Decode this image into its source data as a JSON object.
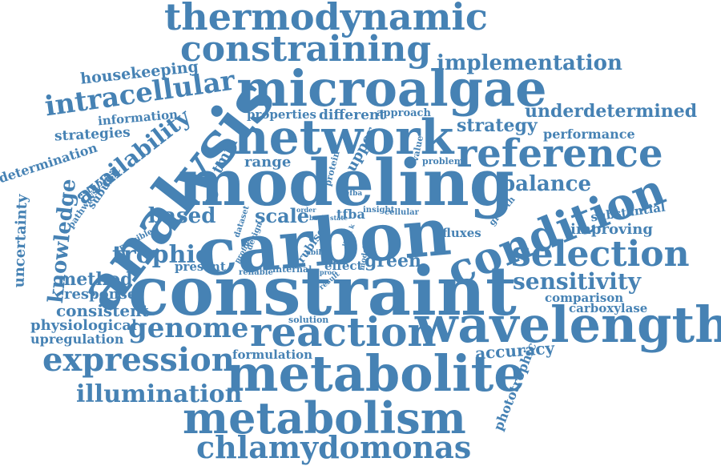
{
  "accent_color": "#4682b4",
  "background_color": "#ffffff",
  "words": {
    "thermodynamic": "thermodynamic",
    "constraining": "constraining",
    "implementation": "implementation",
    "housekeeping": "housekeeping",
    "microalgae": "microalgae",
    "intracellular": "intracellular",
    "underdetermined": "underdetermined",
    "information": "information",
    "properties": "properties",
    "different": "different",
    "approach": "approach",
    "strategies": "strategies",
    "network": "network",
    "strategy": "strategy",
    "performance": "performance",
    "analysis": "analysis",
    "reference": "reference",
    "determination": "determination",
    "availability": "availability",
    "tmfa": "tmfa",
    "upper": "upper",
    "value": "value",
    "range": "range",
    "protein": "protein",
    "problem": "problem",
    "establish": "establish",
    "modeling": "modeling",
    "subunit": "subunit",
    "balance": "balance",
    "cefba": "cefba",
    "pathways": "pathways",
    "uncertainty": "uncertainty",
    "knowledge": "knowledge",
    "condition": "condition",
    "growth": "growth",
    "substantial": "substantial",
    "based": "based",
    "scale": "scale",
    "dataset": "dataset",
    "order": "order",
    "basic_state": "basic state",
    "tfba": "tfba",
    "insight": "insight",
    "cellular": "cellular",
    "carbon": "carbon",
    "design": "design",
    "fluxes": "fluxes",
    "improving": "improving",
    "possible": "possible",
    "trophic": "trophic",
    "profile": "profile",
    "rubisco": "rubisco",
    "light_k": "light k",
    "selection": "selection",
    "ability": "ability",
    "present": "present",
    "effect": "effect",
    "model": "model",
    "green": "green",
    "internal": "internal",
    "reliable": "reliable",
    "method": "method",
    "proc": "proc",
    "constraint": "constraint",
    "result": "result",
    "sensitivity": "sensitivity",
    "response": "response",
    "comparison": "comparison",
    "consistent": "consistent",
    "carboxylase": "carboxylase",
    "physiological": "physiological",
    "solution": "solution",
    "genome": "genome",
    "reaction": "reaction",
    "wavelength": "wavelength",
    "upregulation": "upregulation",
    "expression": "expression",
    "formulation": "formulation",
    "accuracy": "accuracy",
    "metabolite": "metabolite",
    "phototrophic": "phototrophic",
    "illumination": "illumination",
    "metabolism": "metabolism",
    "chlamydomonas": "chlamydomonas"
  }
}
